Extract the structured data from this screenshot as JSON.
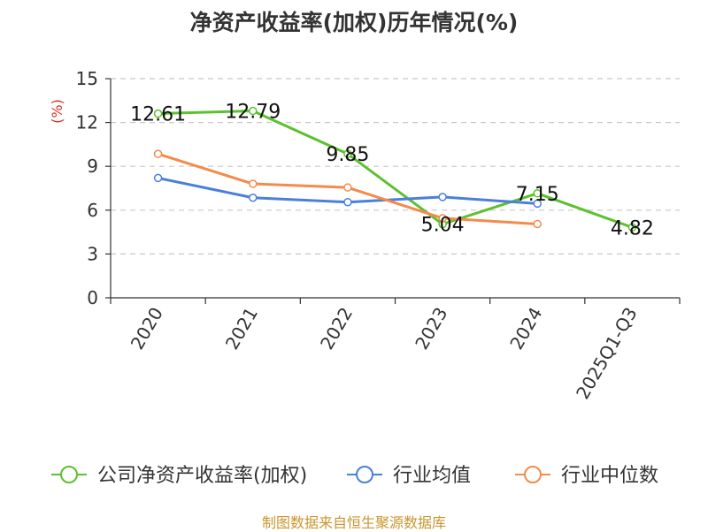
{
  "chart_data": {
    "type": "line",
    "title": "净资产收益率(加权)历年情况(%)",
    "ylabel": "(%)",
    "xlabel": "",
    "categories": [
      "2020",
      "2021",
      "2022",
      "2023",
      "2024",
      "2025Q1-Q3"
    ],
    "ylim": [
      0,
      15
    ],
    "yticks": [
      0,
      3,
      6,
      9,
      12,
      15
    ],
    "grid": true,
    "legend_position": "bottom",
    "series": [
      {
        "name": "公司净资产收益率(加权)",
        "color": "#5cc12e",
        "values": [
          12.61,
          12.79,
          9.85,
          5.04,
          7.15,
          4.82
        ],
        "labels": [
          "12.61",
          "12.79",
          "9.85",
          "5.04",
          "7.15",
          "4.82"
        ]
      },
      {
        "name": "行业均值",
        "color": "#4a7fdc",
        "values": [
          8.2,
          6.85,
          6.55,
          6.9,
          6.45,
          null
        ]
      },
      {
        "name": "行业中位数",
        "color": "#f58a4b",
        "values": [
          9.85,
          7.8,
          7.55,
          5.45,
          5.05,
          null
        ]
      }
    ]
  },
  "footer": "制图数据来自恒生聚源数据库"
}
